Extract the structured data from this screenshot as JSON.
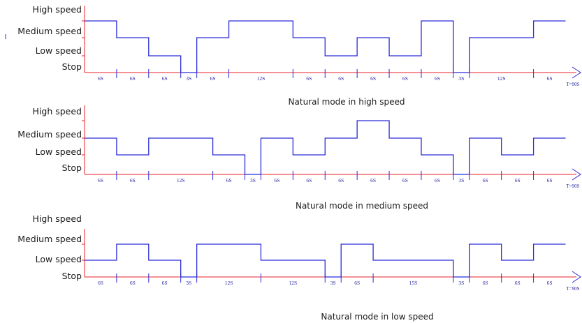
{
  "level_labels": [
    "High speed",
    "Medium speed",
    "Low speed",
    "Stop"
  ],
  "end_label": "T=90S",
  "colors": {
    "axis": "#e8202a",
    "wave": "#2b2bd9",
    "text": "#1a1a1a",
    "segment_text": "#1f1fa0"
  },
  "panels": [
    {
      "caption": "Natural mode in high speed",
      "segments": [
        {
          "dur": 6,
          "level": 3,
          "label": "6S"
        },
        {
          "dur": 6,
          "level": 2,
          "label": "6S"
        },
        {
          "dur": 6,
          "level": 1,
          "label": "6S"
        },
        {
          "dur": 3,
          "level": 0,
          "label": "3S"
        },
        {
          "dur": 6,
          "level": 2,
          "label": "6S"
        },
        {
          "dur": 12,
          "level": 3,
          "label": "12S"
        },
        {
          "dur": 6,
          "level": 2,
          "label": "6S"
        },
        {
          "dur": 6,
          "level": 1,
          "label": "6S"
        },
        {
          "dur": 6,
          "level": 2,
          "label": "6S"
        },
        {
          "dur": 6,
          "level": 1,
          "label": "6S"
        },
        {
          "dur": 6,
          "level": 3,
          "label": "6S"
        },
        {
          "dur": 3,
          "level": 0,
          "label": "3S"
        },
        {
          "dur": 12,
          "level": 2,
          "label": "12S"
        },
        {
          "dur": 6,
          "level": 3,
          "label": "6S"
        }
      ]
    },
    {
      "caption": "Natural mode in medium speed",
      "segments": [
        {
          "dur": 6,
          "level": 2,
          "label": "6S"
        },
        {
          "dur": 6,
          "level": 1,
          "label": "6S"
        },
        {
          "dur": 12,
          "level": 2,
          "label": "12S"
        },
        {
          "dur": 6,
          "level": 1,
          "label": "6S"
        },
        {
          "dur": 3,
          "level": 0,
          "label": "3S"
        },
        {
          "dur": 6,
          "level": 2,
          "label": "6S"
        },
        {
          "dur": 6,
          "level": 1,
          "label": "6S"
        },
        {
          "dur": 6,
          "level": 2,
          "label": "6S"
        },
        {
          "dur": 6,
          "level": 3,
          "label": "6S"
        },
        {
          "dur": 6,
          "level": 2,
          "label": "6S"
        },
        {
          "dur": 6,
          "level": 1,
          "label": "6S"
        },
        {
          "dur": 3,
          "level": 0,
          "label": "3S"
        },
        {
          "dur": 6,
          "level": 2,
          "label": "6S"
        },
        {
          "dur": 6,
          "level": 1,
          "label": "6S"
        },
        {
          "dur": 6,
          "level": 2,
          "label": "6S"
        }
      ]
    },
    {
      "caption": "Natural mode in low speed",
      "segments": [
        {
          "dur": 6,
          "level": 1,
          "label": "6S"
        },
        {
          "dur": 6,
          "level": 2,
          "label": "6S"
        },
        {
          "dur": 6,
          "level": 1,
          "label": "6S"
        },
        {
          "dur": 3,
          "level": 0,
          "label": "3S"
        },
        {
          "dur": 12,
          "level": 2,
          "label": "12S"
        },
        {
          "dur": 12,
          "level": 1,
          "label": "12S"
        },
        {
          "dur": 3,
          "level": 0,
          "label": "3S"
        },
        {
          "dur": 6,
          "level": 2,
          "label": "6S"
        },
        {
          "dur": 15,
          "level": 1,
          "label": "15S"
        },
        {
          "dur": 3,
          "level": 0,
          "label": "3S"
        },
        {
          "dur": 6,
          "level": 2,
          "label": "6S"
        },
        {
          "dur": 6,
          "level": 1,
          "label": "6S"
        },
        {
          "dur": 6,
          "level": 2,
          "label": "6S"
        }
      ]
    }
  ]
}
